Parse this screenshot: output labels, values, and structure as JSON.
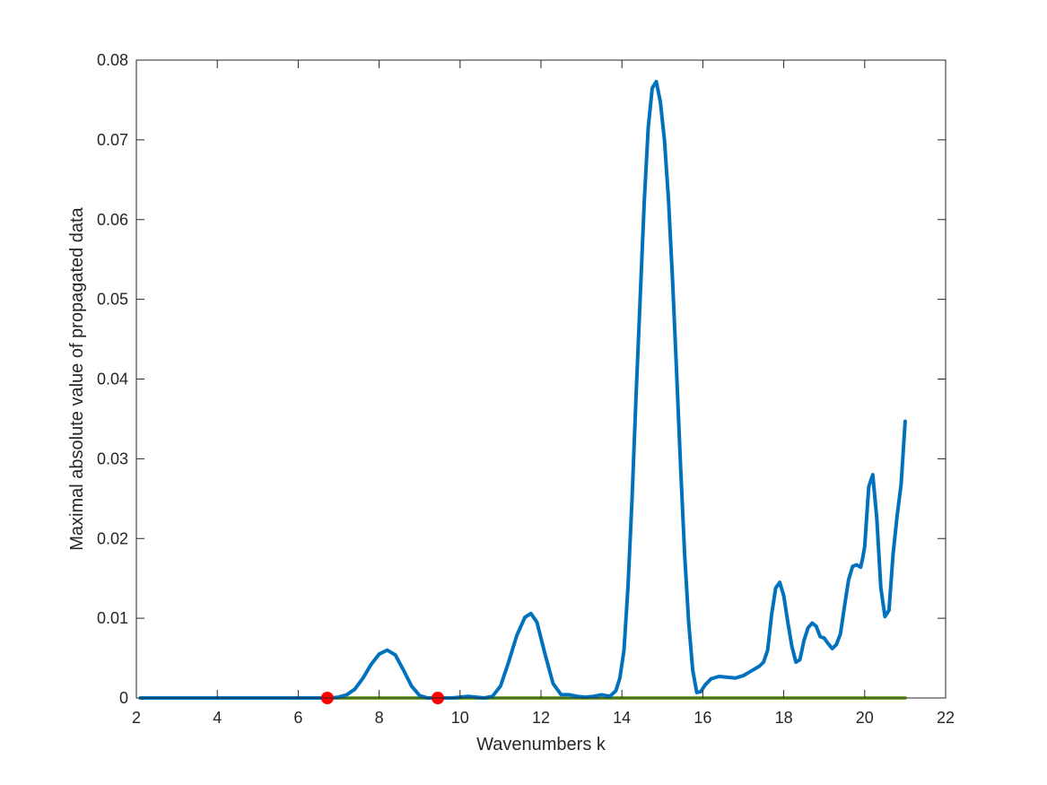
{
  "chart_data": {
    "type": "line",
    "title": "",
    "xlabel": "Wavenumbers k",
    "ylabel": "Maximal absolute value of propagated data",
    "xlim": [
      2,
      22
    ],
    "ylim": [
      0,
      0.08
    ],
    "xticks": [
      2,
      4,
      6,
      8,
      10,
      12,
      14,
      16,
      18,
      20,
      22
    ],
    "yticks": [
      0,
      0.01,
      0.02,
      0.03,
      0.04,
      0.05,
      0.06,
      0.07,
      0.08
    ],
    "xtick_labels": [
      "2",
      "4",
      "6",
      "8",
      "10",
      "12",
      "14",
      "16",
      "18",
      "20",
      "22"
    ],
    "ytick_labels": [
      "0",
      "0.01",
      "0.02",
      "0.03",
      "0.04",
      "0.05",
      "0.06",
      "0.07",
      "0.08"
    ],
    "grid": false,
    "box": true,
    "series": [
      {
        "color": "#0072BD",
        "style": "line",
        "x": [
          2.1,
          6.6,
          6.8,
          7.0,
          7.2,
          7.4,
          7.6,
          7.8,
          8.0,
          8.2,
          8.4,
          8.6,
          8.8,
          9.0,
          9.2,
          9.4,
          9.6,
          9.8,
          10.0,
          10.2,
          10.4,
          10.6,
          10.8,
          11.0,
          11.2,
          11.4,
          11.6,
          11.75,
          11.9,
          12.1,
          12.3,
          12.5,
          12.7,
          12.9,
          13.1,
          13.3,
          13.5,
          13.7,
          13.85,
          13.95,
          14.05,
          14.15,
          14.25,
          14.35,
          14.45,
          14.55,
          14.65,
          14.75,
          14.85,
          14.95,
          15.05,
          15.15,
          15.25,
          15.35,
          15.45,
          15.55,
          15.65,
          15.75,
          15.85,
          15.95,
          16.05,
          16.2,
          16.4,
          16.6,
          16.8,
          17.0,
          17.2,
          17.4,
          17.5,
          17.6,
          17.7,
          17.8,
          17.9,
          18.0,
          18.1,
          18.2,
          18.3,
          18.4,
          18.5,
          18.6,
          18.7,
          18.8,
          18.9,
          19.0,
          19.1,
          19.2,
          19.3,
          19.4,
          19.5,
          19.6,
          19.7,
          19.8,
          19.9,
          19.95,
          20.0,
          20.1,
          20.2,
          20.3,
          20.4,
          20.5,
          20.6,
          20.7,
          20.8,
          20.9,
          21.0
        ],
        "y": [
          0,
          0,
          0,
          0.0001,
          0.0004,
          0.0011,
          0.0025,
          0.0042,
          0.0055,
          0.006,
          0.0054,
          0.0035,
          0.0015,
          0.0003,
          0,
          0,
          0,
          0,
          0.0001,
          0.0002,
          0.0001,
          0,
          0.0002,
          0.0015,
          0.0045,
          0.0078,
          0.0101,
          0.0106,
          0.0095,
          0.0055,
          0.0018,
          0.0004,
          0.0004,
          0.0002,
          0.0001,
          0.0002,
          0.0004,
          0.0002,
          0.0009,
          0.0025,
          0.006,
          0.014,
          0.025,
          0.038,
          0.05,
          0.062,
          0.0715,
          0.0765,
          0.0773,
          0.0748,
          0.07,
          0.0625,
          0.0525,
          0.041,
          0.029,
          0.018,
          0.0095,
          0.0035,
          0.0007,
          0.0008,
          0.0016,
          0.0024,
          0.0027,
          0.0026,
          0.0025,
          0.0028,
          0.0034,
          0.004,
          0.0045,
          0.006,
          0.0105,
          0.0138,
          0.0145,
          0.0128,
          0.0095,
          0.0065,
          0.0045,
          0.0048,
          0.0072,
          0.0088,
          0.0094,
          0.009,
          0.0077,
          0.0075,
          0.0068,
          0.0062,
          0.0067,
          0.008,
          0.0115,
          0.0148,
          0.0165,
          0.0167,
          0.0164,
          0.0175,
          0.019,
          0.0265,
          0.028,
          0.0225,
          0.0138,
          0.0102,
          0.011,
          0.018,
          0.0228,
          0.0268,
          0.0347
        ]
      },
      {
        "color": "#77AC30",
        "style": "line",
        "x": [
          2.1,
          21.0
        ],
        "y": [
          0,
          0
        ]
      },
      {
        "color": "#FF0000",
        "style": "markers",
        "x": [
          6.72,
          9.45
        ],
        "y": [
          0,
          0
        ]
      }
    ]
  }
}
